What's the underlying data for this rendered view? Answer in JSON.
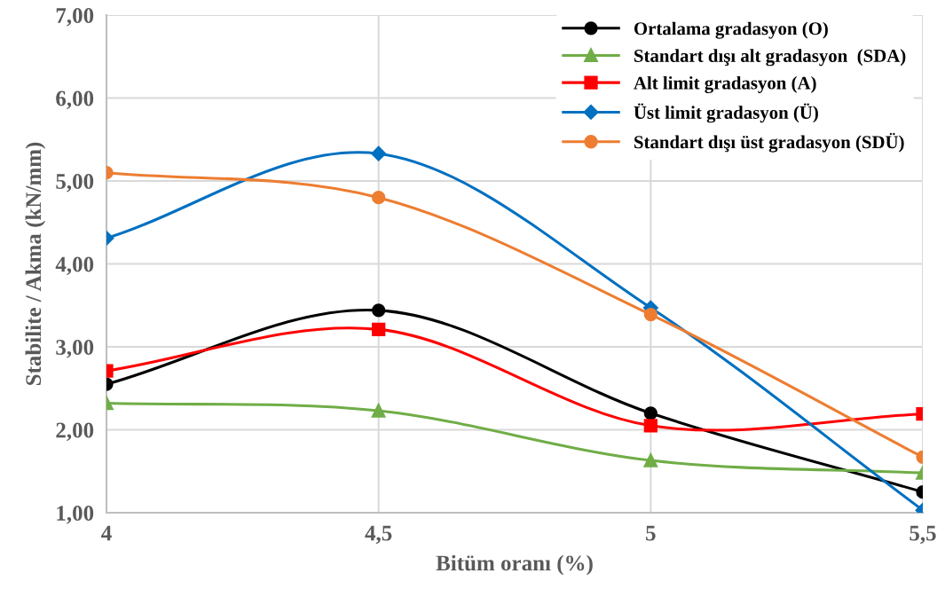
{
  "chart_data": {
    "type": "line",
    "xlabel": "Bitüm oranı (%)",
    "ylabel": "Stabilite / Akma (kN/mm)",
    "x": [
      4,
      4.5,
      5,
      5.5
    ],
    "xlim": [
      4,
      5.5
    ],
    "xticks": [
      4,
      {
        "value": 4.5,
        "label": "4,5"
      },
      5,
      {
        "value": 5.5,
        "label": "5,5"
      }
    ],
    "ylim": [
      1,
      7
    ],
    "yticks": [
      {
        "value": 1,
        "label": "1,00"
      },
      {
        "value": 2,
        "label": "2,00"
      },
      {
        "value": 3,
        "label": "3,00"
      },
      {
        "value": 4,
        "label": "4,00"
      },
      {
        "value": 5,
        "label": "5,00"
      },
      {
        "value": 6,
        "label": "6,00"
      },
      {
        "value": 7,
        "label": "7,00"
      }
    ],
    "grid": true,
    "legend": "top right",
    "series": [
      {
        "name": "Ortalama gradasyon (O)",
        "color": "#000000",
        "marker": "circle",
        "values": [
          2.55,
          3.44,
          2.2,
          1.25
        ]
      },
      {
        "name": "Standart dışı alt gradasyon  (SDA)",
        "color": "#70ad47",
        "marker": "triangle",
        "values": [
          2.32,
          2.23,
          1.63,
          1.48
        ]
      },
      {
        "name": "Alt limit gradasyon (A)",
        "color": "#ff0000",
        "marker": "square",
        "values": [
          2.71,
          3.21,
          2.05,
          2.19
        ]
      },
      {
        "name": "Üst limit gradasyon (Ü)",
        "color": "#0070c0",
        "marker": "diamond",
        "values": [
          4.31,
          5.33,
          3.47,
          1.03
        ]
      },
      {
        "name": "Standart dışı üst gradasyon (SDÜ)",
        "color": "#ed7d31",
        "marker": "circle",
        "values": [
          5.1,
          4.8,
          3.39,
          1.67
        ]
      }
    ]
  }
}
